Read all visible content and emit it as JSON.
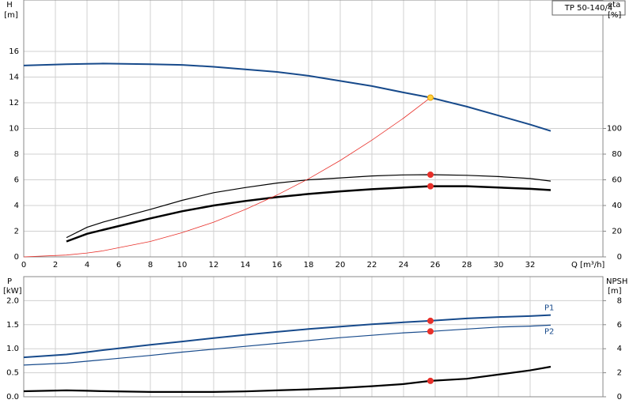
{
  "chart_data": [
    {
      "type": "line",
      "title": "TP 50-140/4",
      "x_label": "Q [m³/h]",
      "y_label": "H",
      "y_unit": "[m]",
      "y2_label": "eta",
      "y2_unit": "[%]",
      "xlim": [
        0,
        36.6
      ],
      "xticks": [
        0,
        2,
        4,
        6,
        8,
        10,
        12,
        14,
        16,
        18,
        20,
        22,
        24,
        26,
        28,
        30,
        32
      ],
      "ylim": [
        0,
        20
      ],
      "yticks": [
        0,
        2,
        4,
        6,
        8,
        10,
        12,
        14,
        16
      ],
      "y2lim": [
        0,
        200
      ],
      "y2ticks": [
        0,
        20,
        40,
        60,
        80,
        100
      ],
      "grid": true,
      "duty_x": 25.7,
      "x": [
        0,
        2.7,
        4,
        5,
        8,
        10,
        12,
        14,
        16,
        18,
        20,
        22,
        24,
        25.7,
        28,
        30,
        32,
        33.3
      ],
      "series": [
        {
          "color": "#174a8b",
          "width": 2,
          "marker_color": "#ffd23f",
          "values": [
            14.9,
            15.0,
            15.03,
            15.05,
            15.0,
            14.95,
            14.8,
            14.6,
            14.4,
            14.1,
            13.7,
            13.3,
            12.8,
            12.4,
            11.7,
            11.0,
            10.3,
            9.8
          ]
        },
        {
          "color": "#000000",
          "width": 1.2,
          "axis": "y2",
          "marker_color": "#e8302a",
          "values": [
            null,
            15,
            23,
            27,
            37,
            44,
            50,
            54,
            57.5,
            60,
            61.5,
            63,
            63.8,
            64,
            63.5,
            62.5,
            61,
            59
          ]
        },
        {
          "color": "#000000",
          "width": 2.5,
          "axis": "y2",
          "marker_color": "#e8302a",
          "values": [
            null,
            12,
            18,
            21,
            30,
            35.5,
            40,
            43.5,
            46.5,
            49,
            51,
            52.7,
            54,
            55,
            55,
            54,
            53,
            52
          ]
        },
        {
          "color": "#e8302a",
          "width": 0.8,
          "values": [
            0,
            0.14,
            0.3,
            0.47,
            1.2,
            1.88,
            2.7,
            3.69,
            4.81,
            6.08,
            7.51,
            9.09,
            10.8,
            12.4,
            null,
            null,
            null,
            null
          ]
        }
      ]
    },
    {
      "type": "line",
      "y_label": "P",
      "y_unit": "[kW]",
      "y2_label": "NPSH",
      "y2_unit": "[m]",
      "xlim": [
        0,
        36.6
      ],
      "ylim": [
        0,
        2.5
      ],
      "yticks": [
        {
          "value": 0,
          "label": "0.0"
        },
        {
          "value": 0.5,
          "label": "0.5"
        },
        {
          "value": 1,
          "label": "1.0"
        },
        {
          "value": 1.5,
          "label": "1.5"
        },
        {
          "value": 2,
          "label": "2.0"
        }
      ],
      "y2lim": [
        0,
        10
      ],
      "y2ticks": [
        0,
        2,
        4,
        6,
        8
      ],
      "grid": true,
      "duty_x": 25.7,
      "x": [
        0,
        2.7,
        4,
        5,
        8,
        10,
        12,
        14,
        16,
        18,
        20,
        22,
        24,
        25.7,
        28,
        30,
        32,
        33.3
      ],
      "series": [
        {
          "name": "P1",
          "color": "#174a8b",
          "width": 2,
          "marker_color": "#e8302a",
          "values": [
            0.82,
            0.88,
            0.93,
            0.97,
            1.08,
            1.15,
            1.22,
            1.29,
            1.35,
            1.41,
            1.46,
            1.51,
            1.55,
            1.58,
            1.63,
            1.66,
            1.68,
            1.7
          ]
        },
        {
          "name": "P2",
          "color": "#174a8b",
          "width": 1.2,
          "marker_color": "#e8302a",
          "values": [
            0.66,
            0.7,
            0.74,
            0.77,
            0.86,
            0.93,
            0.99,
            1.05,
            1.11,
            1.17,
            1.23,
            1.28,
            1.33,
            1.36,
            1.41,
            1.45,
            1.47,
            1.49
          ]
        },
        {
          "color": "#000000",
          "width": 2.2,
          "axis": "y2",
          "marker_color": "#e8302a",
          "values": [
            0.46,
            0.53,
            0.5,
            0.47,
            0.4,
            0.4,
            0.4,
            0.45,
            0.53,
            0.62,
            0.73,
            0.88,
            1.06,
            1.32,
            1.5,
            1.85,
            2.2,
            2.5
          ]
        }
      ]
    }
  ]
}
